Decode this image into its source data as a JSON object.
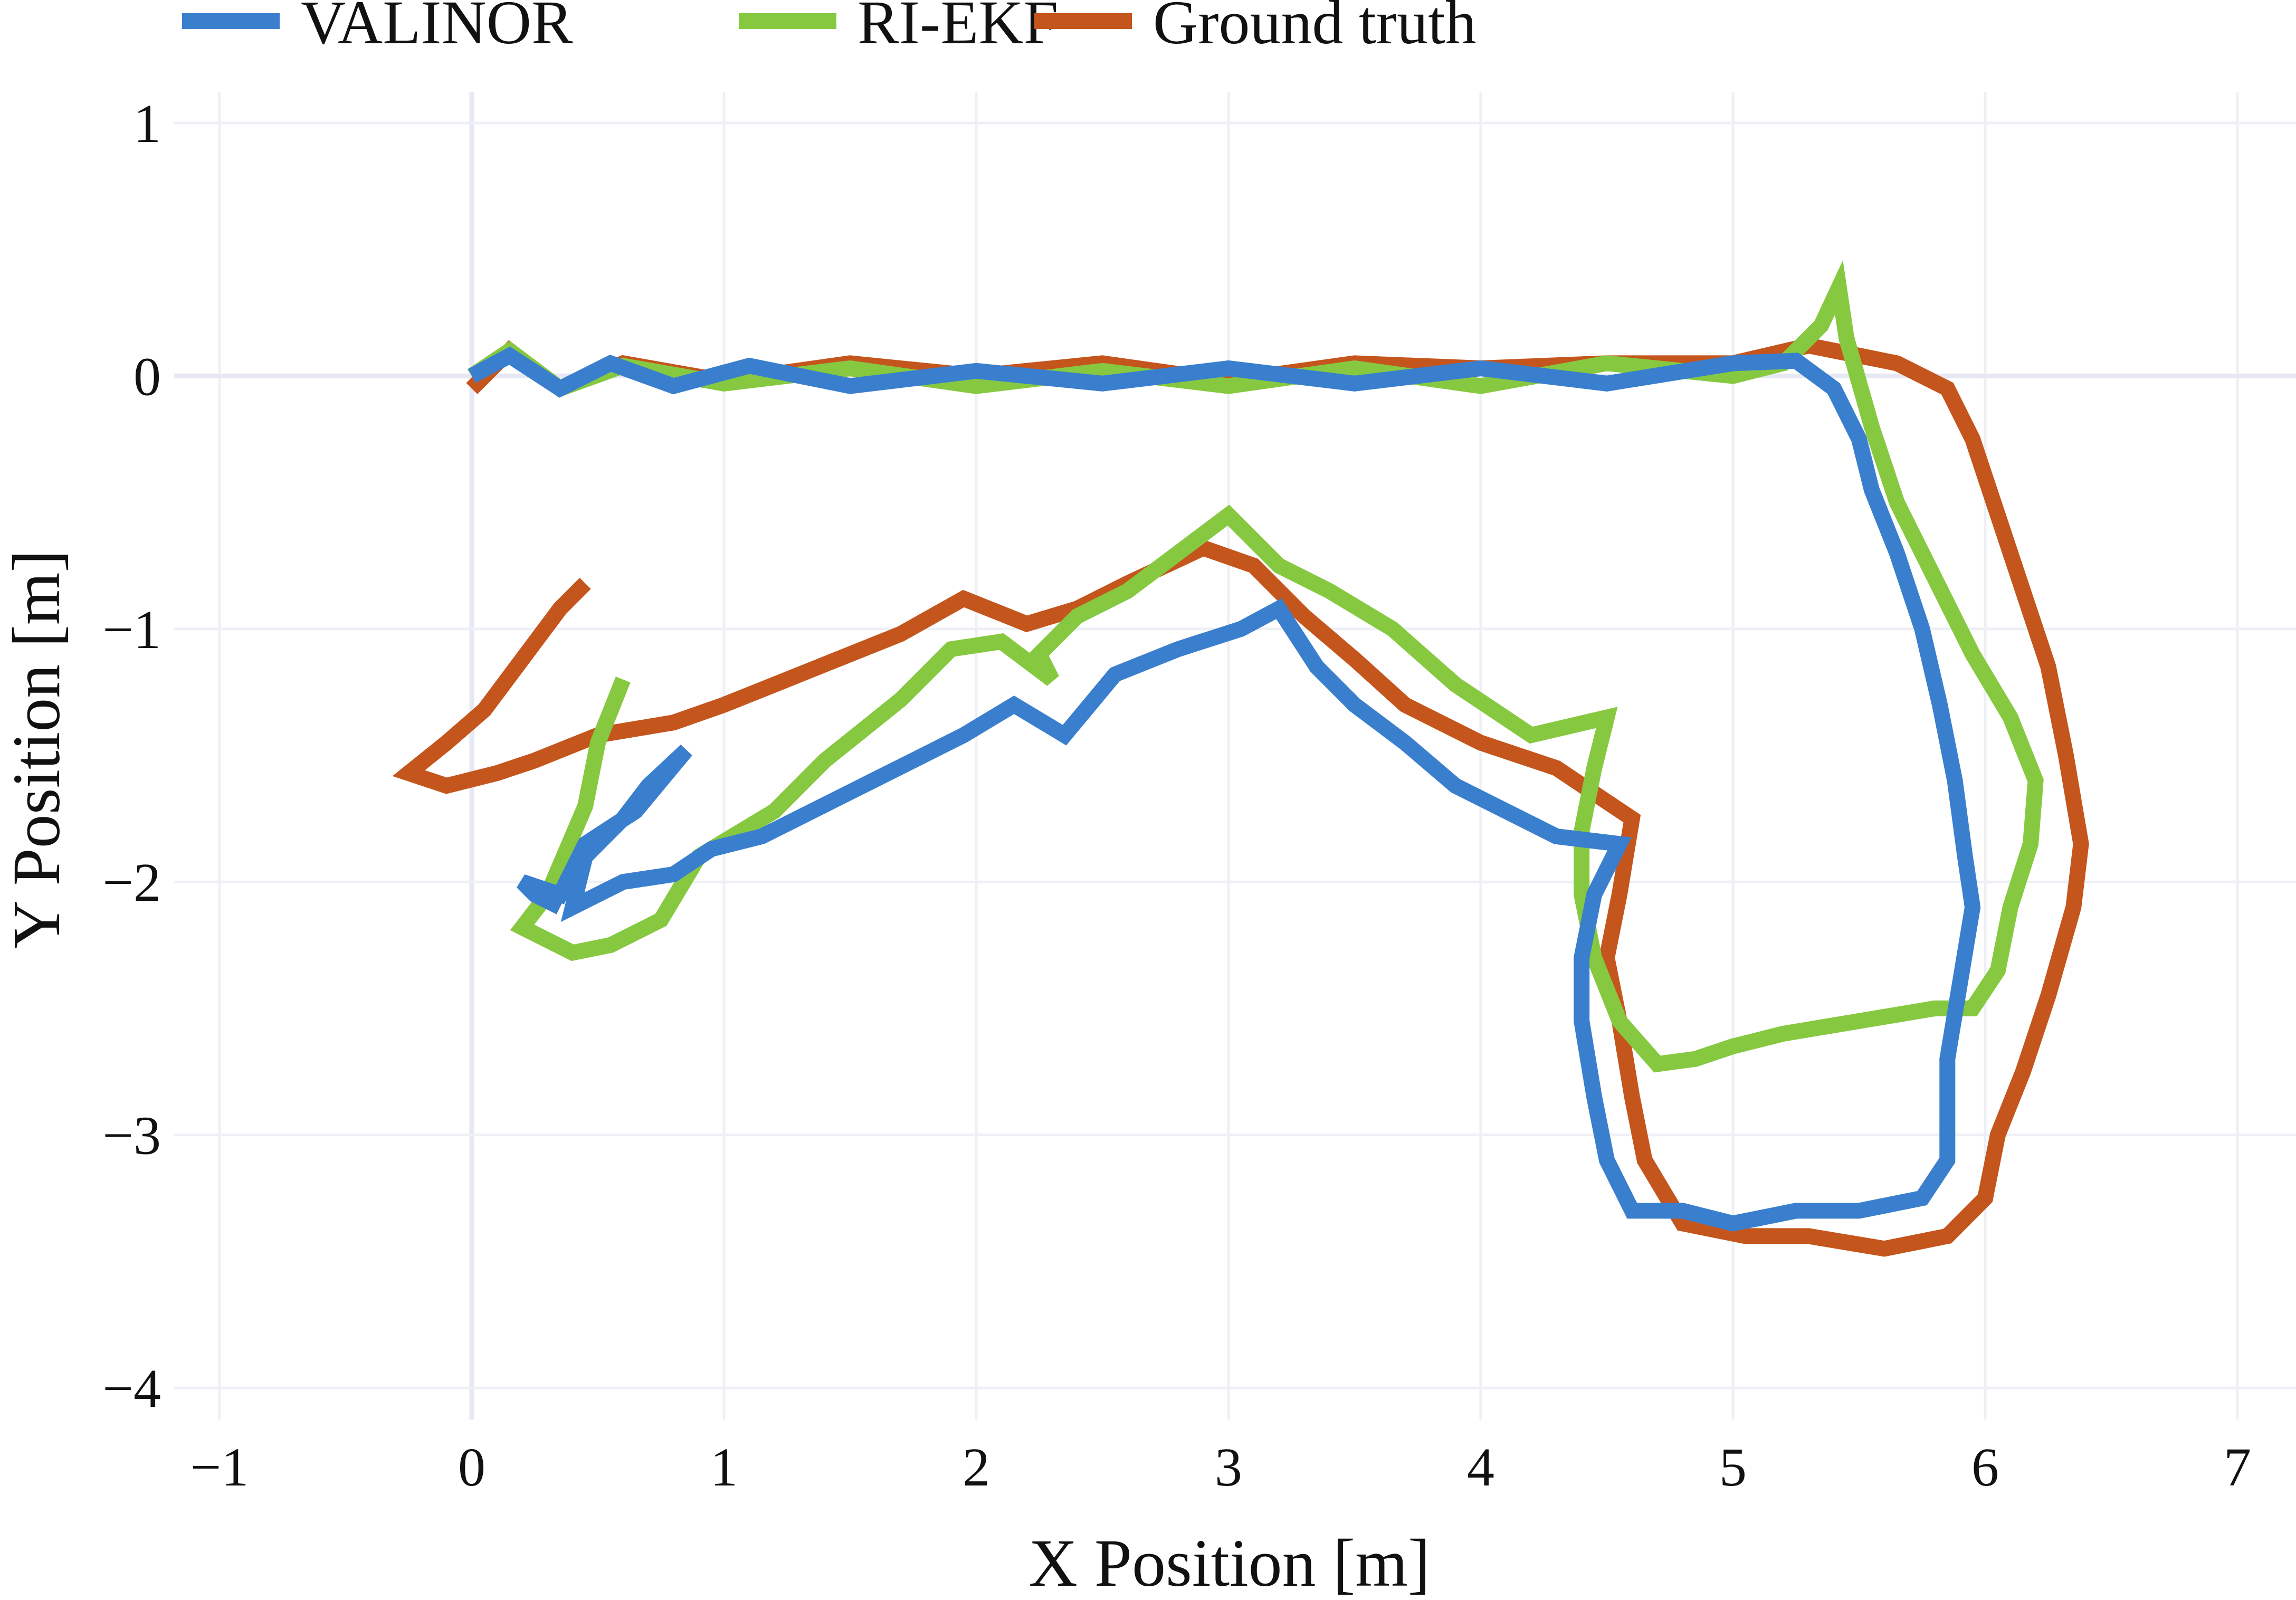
{
  "chart_data": {
    "type": "line",
    "title": "",
    "xlabel": "X Position [m]",
    "ylabel": "Y Position [m]",
    "xlim": [
      -1.1,
      7.2
    ],
    "ylim": [
      -4.12,
      1.12
    ],
    "xticks": [
      -1,
      0,
      1,
      2,
      3,
      4,
      5,
      6,
      7
    ],
    "yticks": [
      1,
      0,
      -1,
      -2,
      -3,
      -4
    ],
    "xtick_labels": [
      "−1",
      "0",
      "1",
      "2",
      "3",
      "4",
      "5",
      "6",
      "7"
    ],
    "ytick_labels": [
      "1",
      "0",
      "−1",
      "−2",
      "−3",
      "−4"
    ],
    "grid": true,
    "legend": {
      "position": "top-left",
      "orientation": "horizontal"
    },
    "series": [
      {
        "name": "VALINOR",
        "color": "#3a7fce",
        "points": [
          [
            0,
            0
          ],
          [
            0.15,
            0.08
          ],
          [
            0.35,
            -0.05
          ],
          [
            0.55,
            0.05
          ],
          [
            0.8,
            -0.04
          ],
          [
            1.1,
            0.04
          ],
          [
            1.5,
            -0.04
          ],
          [
            2.0,
            0.02
          ],
          [
            2.5,
            -0.03
          ],
          [
            3.0,
            0.03
          ],
          [
            3.5,
            -0.03
          ],
          [
            4.0,
            0.03
          ],
          [
            4.5,
            -0.03
          ],
          [
            5.0,
            0.05
          ],
          [
            5.25,
            0.06
          ],
          [
            5.4,
            -0.05
          ],
          [
            5.5,
            -0.25
          ],
          [
            5.55,
            -0.45
          ],
          [
            5.65,
            -0.7
          ],
          [
            5.75,
            -1.0
          ],
          [
            5.82,
            -1.3
          ],
          [
            5.88,
            -1.6
          ],
          [
            5.92,
            -1.9
          ],
          [
            5.95,
            -2.1
          ],
          [
            5.9,
            -2.4
          ],
          [
            5.85,
            -2.7
          ],
          [
            5.85,
            -2.9
          ],
          [
            5.85,
            -3.1
          ],
          [
            5.75,
            -3.25
          ],
          [
            5.5,
            -3.3
          ],
          [
            5.25,
            -3.3
          ],
          [
            5.0,
            -3.35
          ],
          [
            4.8,
            -3.3
          ],
          [
            4.6,
            -3.3
          ],
          [
            4.5,
            -3.1
          ],
          [
            4.45,
            -2.85
          ],
          [
            4.4,
            -2.55
          ],
          [
            4.4,
            -2.3
          ],
          [
            4.45,
            -2.05
          ],
          [
            4.55,
            -1.85
          ],
          [
            4.3,
            -1.82
          ],
          [
            4.1,
            -1.72
          ],
          [
            3.9,
            -1.62
          ],
          [
            3.7,
            -1.45
          ],
          [
            3.5,
            -1.3
          ],
          [
            3.35,
            -1.15
          ],
          [
            3.2,
            -0.92
          ],
          [
            3.05,
            -1.0
          ],
          [
            2.8,
            -1.08
          ],
          [
            2.55,
            -1.18
          ],
          [
            2.35,
            -1.42
          ],
          [
            2.15,
            -1.3
          ],
          [
            1.95,
            -1.42
          ],
          [
            1.75,
            -1.52
          ],
          [
            1.55,
            -1.62
          ],
          [
            1.35,
            -1.72
          ],
          [
            1.15,
            -1.82
          ],
          [
            0.95,
            -1.87
          ],
          [
            0.8,
            -1.97
          ],
          [
            0.6,
            -2.0
          ],
          [
            0.4,
            -2.1
          ],
          [
            0.45,
            -1.9
          ],
          [
            0.6,
            -1.75
          ],
          [
            0.7,
            -1.62
          ],
          [
            0.85,
            -1.48
          ],
          [
            0.65,
            -1.72
          ],
          [
            0.45,
            -1.85
          ],
          [
            0.35,
            -2.05
          ],
          [
            0.2,
            -2.0
          ],
          [
            0.25,
            -2.05
          ],
          [
            0.35,
            -2.1
          ]
        ]
      },
      {
        "name": "RI-EKF",
        "color": "#86c940",
        "points": [
          [
            0,
            0
          ],
          [
            0.15,
            0.1
          ],
          [
            0.35,
            -0.05
          ],
          [
            0.6,
            0.04
          ],
          [
            1.0,
            -0.03
          ],
          [
            1.5,
            0.03
          ],
          [
            2.0,
            -0.04
          ],
          [
            2.5,
            0.02
          ],
          [
            3.0,
            -0.04
          ],
          [
            3.5,
            0.03
          ],
          [
            4.0,
            -0.04
          ],
          [
            4.5,
            0.05
          ],
          [
            5.0,
            0.0
          ],
          [
            5.2,
            0.05
          ],
          [
            5.35,
            0.2
          ],
          [
            5.42,
            0.35
          ],
          [
            5.45,
            0.15
          ],
          [
            5.55,
            -0.2
          ],
          [
            5.65,
            -0.5
          ],
          [
            5.8,
            -0.8
          ],
          [
            5.95,
            -1.1
          ],
          [
            6.1,
            -1.35
          ],
          [
            6.2,
            -1.6
          ],
          [
            6.18,
            -1.85
          ],
          [
            6.1,
            -2.1
          ],
          [
            6.05,
            -2.35
          ],
          [
            5.95,
            -2.5
          ],
          [
            5.8,
            -2.5
          ],
          [
            5.5,
            -2.55
          ],
          [
            5.2,
            -2.6
          ],
          [
            5.0,
            -2.65
          ],
          [
            4.85,
            -2.7
          ],
          [
            4.7,
            -2.72
          ],
          [
            4.55,
            -2.55
          ],
          [
            4.45,
            -2.3
          ],
          [
            4.4,
            -2.05
          ],
          [
            4.4,
            -1.8
          ],
          [
            4.45,
            -1.55
          ],
          [
            4.5,
            -1.35
          ],
          [
            4.2,
            -1.42
          ],
          [
            3.9,
            -1.22
          ],
          [
            3.65,
            -1.0
          ],
          [
            3.4,
            -0.85
          ],
          [
            3.2,
            -0.75
          ],
          [
            3.1,
            -0.65
          ],
          [
            3.0,
            -0.55
          ],
          [
            2.8,
            -0.7
          ],
          [
            2.6,
            -0.85
          ],
          [
            2.4,
            -0.95
          ],
          [
            2.25,
            -1.1
          ],
          [
            2.3,
            -1.2
          ],
          [
            2.1,
            -1.05
          ],
          [
            1.9,
            -1.08
          ],
          [
            1.7,
            -1.28
          ],
          [
            1.4,
            -1.52
          ],
          [
            1.2,
            -1.72
          ],
          [
            0.9,
            -1.9
          ],
          [
            0.75,
            -2.15
          ],
          [
            0.55,
            -2.25
          ],
          [
            0.4,
            -2.28
          ],
          [
            0.2,
            -2.18
          ],
          [
            0.3,
            -2.05
          ],
          [
            0.45,
            -1.7
          ],
          [
            0.5,
            -1.45
          ],
          [
            0.6,
            -1.2
          ]
        ]
      },
      {
        "name": "Ground truth",
        "color": "#c4551c",
        "points": [
          [
            0,
            -0.05
          ],
          [
            0.15,
            0.1
          ],
          [
            0.35,
            -0.05
          ],
          [
            0.6,
            0.05
          ],
          [
            1.0,
            -0.02
          ],
          [
            1.5,
            0.05
          ],
          [
            2.0,
            0.0
          ],
          [
            2.5,
            0.05
          ],
          [
            3.0,
            -0.02
          ],
          [
            3.5,
            0.05
          ],
          [
            4.0,
            0.03
          ],
          [
            4.5,
            0.05
          ],
          [
            5.0,
            0.05
          ],
          [
            5.3,
            0.12
          ],
          [
            5.5,
            0.08
          ],
          [
            5.65,
            0.05
          ],
          [
            5.85,
            -0.05
          ],
          [
            5.95,
            -0.25
          ],
          [
            6.05,
            -0.55
          ],
          [
            6.15,
            -0.85
          ],
          [
            6.25,
            -1.15
          ],
          [
            6.32,
            -1.5
          ],
          [
            6.38,
            -1.85
          ],
          [
            6.35,
            -2.1
          ],
          [
            6.25,
            -2.45
          ],
          [
            6.15,
            -2.75
          ],
          [
            6.05,
            -3.0
          ],
          [
            6.0,
            -3.25
          ],
          [
            5.85,
            -3.4
          ],
          [
            5.6,
            -3.45
          ],
          [
            5.3,
            -3.4
          ],
          [
            5.05,
            -3.4
          ],
          [
            4.8,
            -3.35
          ],
          [
            4.65,
            -3.1
          ],
          [
            4.6,
            -2.85
          ],
          [
            4.55,
            -2.55
          ],
          [
            4.5,
            -2.3
          ],
          [
            4.55,
            -2.05
          ],
          [
            4.6,
            -1.75
          ],
          [
            4.3,
            -1.55
          ],
          [
            4.0,
            -1.45
          ],
          [
            3.7,
            -1.3
          ],
          [
            3.5,
            -1.12
          ],
          [
            3.3,
            -0.95
          ],
          [
            3.1,
            -0.75
          ],
          [
            2.9,
            -0.68
          ],
          [
            2.6,
            -0.82
          ],
          [
            2.4,
            -0.92
          ],
          [
            2.2,
            -0.98
          ],
          [
            1.95,
            -0.88
          ],
          [
            1.7,
            -1.02
          ],
          [
            1.45,
            -1.12
          ],
          [
            1.2,
            -1.22
          ],
          [
            1.0,
            -1.3
          ],
          [
            0.8,
            -1.37
          ],
          [
            0.5,
            -1.42
          ],
          [
            0.25,
            -1.52
          ],
          [
            0.1,
            -1.57
          ],
          [
            -0.1,
            -1.62
          ],
          [
            -0.25,
            -1.57
          ],
          [
            -0.1,
            -1.45
          ],
          [
            0.05,
            -1.32
          ],
          [
            0.2,
            -1.12
          ],
          [
            0.35,
            -0.92
          ],
          [
            0.45,
            -0.82
          ]
        ]
      }
    ]
  }
}
